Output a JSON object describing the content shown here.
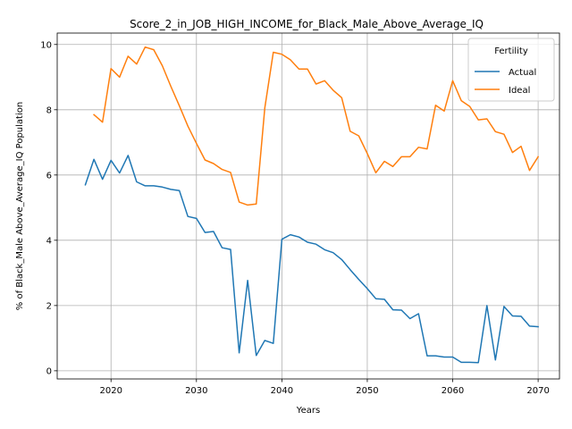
{
  "chart_data": {
    "type": "line",
    "title": "Score_2_in_JOB_HIGH_INCOME_for_Black_Male_Above_Average_IQ",
    "xlabel": "Years",
    "ylabel": "% of Black_Male Above_Average_IQ Population",
    "xlim": [
      2013.7,
      2072.5
    ],
    "ylim": [
      -0.25,
      10.35
    ],
    "xticks": [
      2020,
      2030,
      2040,
      2050,
      2060,
      2070
    ],
    "yticks": [
      0,
      2,
      4,
      6,
      8,
      10
    ],
    "grid": true,
    "legend": {
      "title": "Fertility",
      "placement": "upper right"
    },
    "series": [
      {
        "name": "Actual",
        "color": "#1f77b4",
        "x": [
          2017,
          2018,
          2019,
          2020,
          2021,
          2022,
          2023,
          2024,
          2025,
          2026,
          2027,
          2028,
          2029,
          2030,
          2031,
          2032,
          2033,
          2034,
          2035,
          2036,
          2037,
          2038,
          2039,
          2040,
          2041,
          2042,
          2043,
          2044,
          2045,
          2046,
          2047,
          2048,
          2049,
          2050,
          2051,
          2052,
          2053,
          2054,
          2055,
          2056,
          2057,
          2058,
          2059,
          2060,
          2061,
          2062,
          2063,
          2064,
          2065,
          2066,
          2067,
          2068,
          2069,
          2070
        ],
        "y": [
          5.7,
          6.48,
          5.87,
          6.45,
          6.06,
          6.6,
          5.79,
          5.67,
          5.67,
          5.63,
          5.56,
          5.52,
          4.73,
          4.67,
          4.24,
          4.27,
          3.77,
          3.72,
          0.55,
          2.77,
          0.47,
          0.93,
          0.84,
          4.03,
          4.17,
          4.1,
          3.94,
          3.88,
          3.71,
          3.62,
          3.41,
          3.1,
          2.8,
          2.52,
          2.21,
          2.19,
          1.87,
          1.86,
          1.6,
          1.75,
          0.46,
          0.46,
          0.42,
          0.42,
          0.26,
          0.26,
          0.25,
          2.0,
          0.33,
          1.97,
          1.68,
          1.67,
          1.37,
          1.35
        ]
      },
      {
        "name": "Ideal",
        "color": "#ff7f0e",
        "x": [
          2018,
          2019,
          2020,
          2021,
          2022,
          2023,
          2024,
          2025,
          2026,
          2027,
          2028,
          2029,
          2030,
          2031,
          2032,
          2033,
          2034,
          2035,
          2036,
          2037,
          2038,
          2039,
          2040,
          2041,
          2042,
          2043,
          2044,
          2045,
          2046,
          2047,
          2048,
          2049,
          2050,
          2051,
          2052,
          2053,
          2054,
          2055,
          2056,
          2057,
          2058,
          2059,
          2060,
          2061,
          2062,
          2063,
          2064,
          2065,
          2066,
          2067,
          2068,
          2069,
          2070
        ],
        "y": [
          7.85,
          7.62,
          9.26,
          9.0,
          9.64,
          9.4,
          9.92,
          9.84,
          9.35,
          8.72,
          8.12,
          7.5,
          6.97,
          6.46,
          6.35,
          6.17,
          6.08,
          5.17,
          5.08,
          5.11,
          8.06,
          9.76,
          9.7,
          9.53,
          9.25,
          9.25,
          8.79,
          8.89,
          8.6,
          8.37,
          7.34,
          7.2,
          6.66,
          6.07,
          6.42,
          6.26,
          6.56,
          6.56,
          6.85,
          6.8,
          8.14,
          7.96,
          8.89,
          8.28,
          8.1,
          7.69,
          7.72,
          7.33,
          7.25,
          6.69,
          6.88,
          6.14,
          6.56
        ]
      }
    ]
  }
}
